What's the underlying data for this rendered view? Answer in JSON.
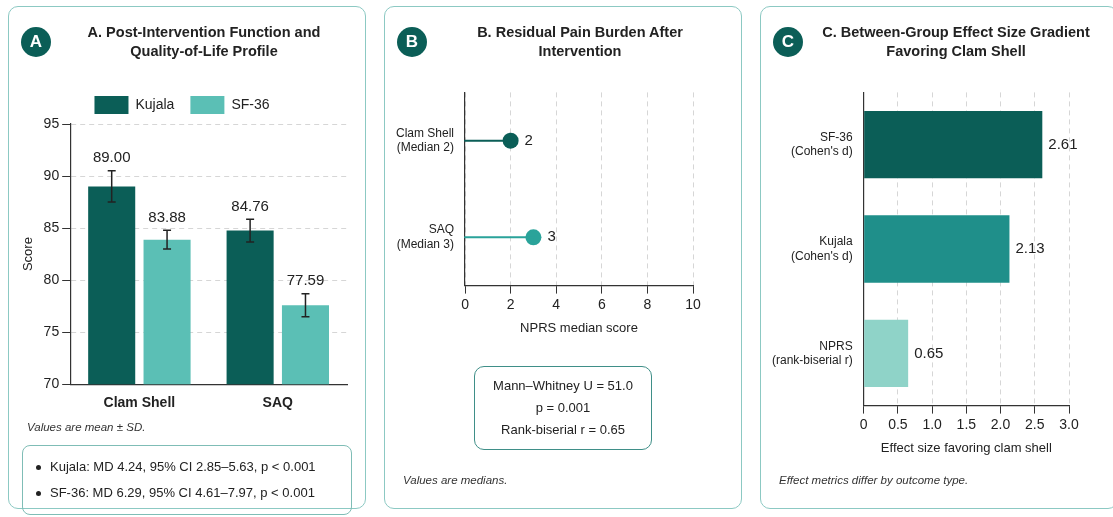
{
  "chart_data": [
    {
      "type": "bar",
      "title": "A. Post-Intervention Function and Quality-of-Life Profile",
      "ylabel": "Score",
      "categories": [
        "Clam Shell",
        "SAQ"
      ],
      "series": [
        {
          "name": "Kujala",
          "color": "#0b5e57",
          "values": [
            89.0,
            84.76
          ],
          "errors": [
            1.5,
            1.1
          ],
          "value_labels": [
            "89.00",
            "84.76"
          ]
        },
        {
          "name": "SF-36",
          "color": "#5bbfb5",
          "values": [
            83.88,
            77.59
          ],
          "errors": [
            0.9,
            1.1
          ],
          "value_labels": [
            "83.88",
            "77.59"
          ]
        }
      ],
      "ylim": [
        70,
        95
      ],
      "yticks": [
        70,
        75,
        80,
        85,
        90,
        95
      ],
      "grid": "y",
      "legend": "top",
      "annotations": [
        "A",
        "Values are mean ± SD.",
        "Kujala: MD 4.24, 95% CI 2.85–5.63, p < 0.001",
        "SF-36: MD 6.29, 95% CI 4.61–7.97, p < 0.001"
      ]
    },
    {
      "type": "lollipop",
      "orientation": "horizontal",
      "title": "B. Residual Pain Burden After Intervention",
      "xlabel": "NPRS median score",
      "categories": [
        "Clam Shell\n(Median 2)",
        "SAQ\n(Median 3)"
      ],
      "values": [
        2,
        3
      ],
      "colors": [
        "#0b5e57",
        "#2aa39a"
      ],
      "data_labels": true,
      "marker": "circle",
      "xlim": [
        0,
        10
      ],
      "xticks": [
        0,
        2,
        4,
        6,
        8,
        10
      ],
      "grid": "x",
      "annotations": [
        "B",
        "Mann–Whitney U = 51.0",
        "p = 0.001",
        "Rank-biserial r = 0.65",
        "Values are medians."
      ]
    },
    {
      "type": "bar",
      "orientation": "horizontal",
      "title": "C. Between-Group Effect Size Gradient Favoring Clam Shell",
      "xlabel": "Effect size favoring clam shell",
      "categories": [
        "SF-36\n(Cohen's d)",
        "Kujala\n(Cohen's d)",
        "NPRS\n(rank-biserial r)"
      ],
      "values": [
        2.61,
        2.13,
        0.65
      ],
      "colors": [
        "#0b5e57",
        "#1f8f8a",
        "#8fd3c8"
      ],
      "data_labels": true,
      "xlim": [
        0,
        3
      ],
      "xticks": [
        0,
        0.5,
        {
          "value": 1,
          "label": "1.0"
        },
        1.5,
        {
          "value": 2,
          "label": "2.0"
        },
        2.5,
        {
          "value": 3,
          "label": "3.0"
        }
      ],
      "grid": "x",
      "annotations": [
        "C",
        "Effect metrics differ by outcome type."
      ]
    }
  ]
}
